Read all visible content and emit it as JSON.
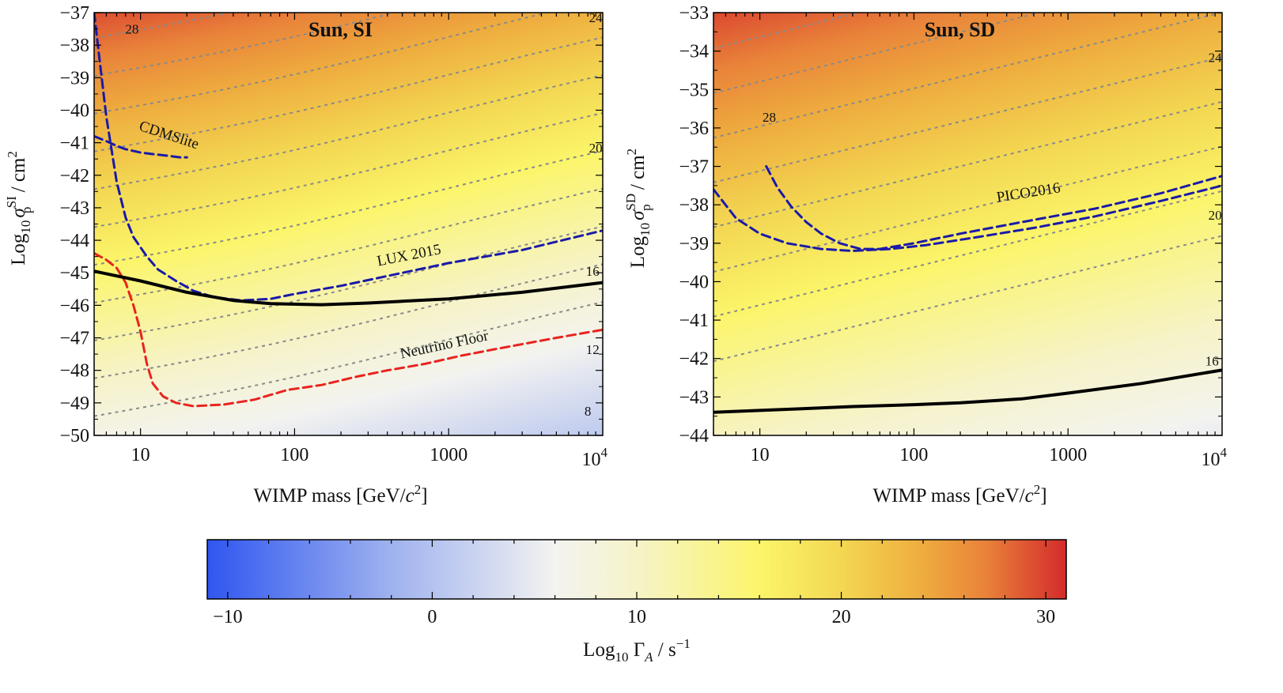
{
  "chart_data": [
    {
      "type": "heatmap",
      "title": "Sun, SI",
      "xlabel": "WIMP mass [GeV/c²]",
      "ylabel_parts": {
        "log": "Log",
        "log_sub": "10",
        "sigma": "σ",
        "sup": "SI",
        "sub": "p",
        "units": " / cm",
        "units_sup": "2"
      },
      "xscale": "log",
      "xlim": [
        5,
        10000
      ],
      "ylim": [
        -50,
        -37
      ],
      "x_ticks": [
        {
          "v": 10,
          "label": "10"
        },
        {
          "v": 100,
          "label": "100"
        },
        {
          "v": 1000,
          "label": "1000"
        },
        {
          "v": 10000,
          "label": "10",
          "sup": "4"
        }
      ],
      "y_ticks": [
        {
          "v": -37,
          "label": "−37"
        },
        {
          "v": -38,
          "label": "−38"
        },
        {
          "v": -39,
          "label": "−39"
        },
        {
          "v": -40,
          "label": "−40"
        },
        {
          "v": -41,
          "label": "−41"
        },
        {
          "v": -42,
          "label": "−42"
        },
        {
          "v": -43,
          "label": "−43"
        },
        {
          "v": -44,
          "label": "−44"
        },
        {
          "v": -45,
          "label": "−45"
        },
        {
          "v": -46,
          "label": "−46"
        },
        {
          "v": -47,
          "label": "−47"
        },
        {
          "v": -48,
          "label": "−48"
        },
        {
          "v": -49,
          "label": "−49"
        },
        {
          "v": -50,
          "label": "−50"
        }
      ],
      "field": {
        "a": 29.0,
        "b": -1.75,
        "c": 1.72,
        "y0": -37,
        "amp": 0.55,
        "p": 1.6,
        "xc": 1.8
      },
      "contours": [
        28,
        26,
        24,
        22,
        20,
        18,
        16,
        14,
        12,
        10,
        8
      ],
      "contour_labels": [
        {
          "text": "28",
          "m": 8.8,
          "y": -37.55
        },
        {
          "text": "24",
          "m": 9000,
          "y": -37.2
        },
        {
          "text": "20",
          "m": 9000,
          "y": -41.2
        },
        {
          "text": "16",
          "m": 8600,
          "y": -45.0
        },
        {
          "text": "12",
          "m": 8600,
          "y": -47.4
        },
        {
          "text": "8",
          "m": 8000,
          "y": -49.3
        }
      ],
      "series": [
        {
          "name": "CDMSlite",
          "color": "#1a1aa8",
          "dash": true,
          "points": [
            [
              5,
              -40.8
            ],
            [
              6,
              -40.95
            ],
            [
              7,
              -41.1
            ],
            [
              8,
              -41.2
            ],
            [
              10,
              -41.3
            ],
            [
              12,
              -41.35
            ],
            [
              15,
              -41.4
            ],
            [
              18,
              -41.45
            ],
            [
              20,
              -41.45
            ]
          ]
        },
        {
          "name": "LUX 2015",
          "color": "#1a1aa8",
          "dash": true,
          "points": [
            [
              5,
              -37.0
            ],
            [
              5.5,
              -38.7
            ],
            [
              6,
              -40.2
            ],
            [
              7,
              -42.2
            ],
            [
              8,
              -43.3
            ],
            [
              9,
              -43.9
            ],
            [
              11,
              -44.5
            ],
            [
              13,
              -44.9
            ],
            [
              17,
              -45.25
            ],
            [
              22,
              -45.55
            ],
            [
              30,
              -45.75
            ],
            [
              45,
              -45.85
            ],
            [
              70,
              -45.8
            ],
            [
              100,
              -45.65
            ],
            [
              200,
              -45.4
            ],
            [
              400,
              -45.1
            ],
            [
              1000,
              -44.7
            ],
            [
              3000,
              -44.3
            ],
            [
              10000,
              -43.7
            ]
          ]
        },
        {
          "name": "Neutrino Floor",
          "color": "#e8241e",
          "dash": true,
          "points": [
            [
              5,
              -44.4
            ],
            [
              6,
              -44.6
            ],
            [
              7,
              -44.85
            ],
            [
              8,
              -45.3
            ],
            [
              9,
              -46.0
            ],
            [
              10,
              -46.8
            ],
            [
              11,
              -47.8
            ],
            [
              12,
              -48.4
            ],
            [
              14,
              -48.8
            ],
            [
              17,
              -49.0
            ],
            [
              22,
              -49.1
            ],
            [
              35,
              -49.05
            ],
            [
              55,
              -48.9
            ],
            [
              90,
              -48.6
            ],
            [
              150,
              -48.45
            ],
            [
              250,
              -48.2
            ],
            [
              400,
              -48.0
            ],
            [
              700,
              -47.8
            ],
            [
              1200,
              -47.55
            ],
            [
              2000,
              -47.35
            ],
            [
              5000,
              -47.0
            ],
            [
              10000,
              -46.75
            ]
          ]
        },
        {
          "name": "model",
          "color": "#000000",
          "dash": false,
          "points": [
            [
              5,
              -44.95
            ],
            [
              10,
              -45.25
            ],
            [
              20,
              -45.6
            ],
            [
              40,
              -45.85
            ],
            [
              70,
              -45.95
            ],
            [
              150,
              -45.98
            ],
            [
              300,
              -45.93
            ],
            [
              1000,
              -45.8
            ],
            [
              3000,
              -45.6
            ],
            [
              10000,
              -45.3
            ]
          ]
        }
      ],
      "curve_labels": [
        {
          "text": "CDMSlite",
          "m": 15,
          "y": -40.9,
          "angle": 18
        },
        {
          "text": "LUX 2015",
          "m": 560,
          "y": -44.6,
          "angle": -11
        },
        {
          "text": "Neutrino Floor",
          "m": 950,
          "y": -47.35,
          "angle": -12
        }
      ]
    },
    {
      "type": "heatmap",
      "title": "Sun, SD",
      "xlabel": "WIMP mass [GeV/c²]",
      "ylabel_parts": {
        "log": "Log",
        "log_sub": "10",
        "sigma": "σ",
        "sup": "SD",
        "sub": "p",
        "units": " / cm",
        "units_sup": "2"
      },
      "xscale": "log",
      "xlim": [
        5,
        10000
      ],
      "ylim": [
        -44,
        -33
      ],
      "x_ticks": [
        {
          "v": 10,
          "label": "10"
        },
        {
          "v": 100,
          "label": "100"
        },
        {
          "v": 1000,
          "label": "1000"
        },
        {
          "v": 10000,
          "label": "10",
          "sup": "4"
        }
      ],
      "y_ticks": [
        {
          "v": -33,
          "label": "−33"
        },
        {
          "v": -34,
          "label": "−34"
        },
        {
          "v": -35,
          "label": "−35"
        },
        {
          "v": -36,
          "label": "−36"
        },
        {
          "v": -37,
          "label": "−37"
        },
        {
          "v": -38,
          "label": "−38"
        },
        {
          "v": -39,
          "label": "−39"
        },
        {
          "v": -40,
          "label": "−40"
        },
        {
          "v": -41,
          "label": "−41"
        },
        {
          "v": -42,
          "label": "−42"
        },
        {
          "v": -43,
          "label": "−43"
        },
        {
          "v": -44,
          "label": "−44"
        }
      ],
      "field": {
        "a": 29.6,
        "b": -1.7,
        "c": 1.72,
        "y0": -33,
        "amp": 0.0,
        "p": 1.6,
        "xc": 1.8
      },
      "contours": [
        28,
        26,
        24,
        22,
        20,
        18,
        16,
        14
      ],
      "contour_labels": [
        {
          "text": "28",
          "m": 11.5,
          "y": -35.75
        },
        {
          "text": "24",
          "m": 9000,
          "y": -34.2
        },
        {
          "text": "20",
          "m": 9000,
          "y": -38.3
        },
        {
          "text": "16",
          "m": 8600,
          "y": -42.1
        }
      ],
      "series": [
        {
          "name": "PICO2016 (a)",
          "color": "#1a1aa8",
          "dash": true,
          "points": [
            [
              5,
              -37.6
            ],
            [
              7,
              -38.35
            ],
            [
              10,
              -38.75
            ],
            [
              15,
              -39.0
            ],
            [
              25,
              -39.15
            ],
            [
              40,
              -39.2
            ],
            [
              70,
              -39.15
            ],
            [
              120,
              -39.05
            ],
            [
              250,
              -38.85
            ],
            [
              600,
              -38.6
            ],
            [
              1500,
              -38.3
            ],
            [
              4000,
              -37.9
            ],
            [
              10000,
              -37.5
            ]
          ]
        },
        {
          "name": "PICO2016 (b)",
          "color": "#1a1aa8",
          "dash": true,
          "points": [
            [
              11,
              -37.0
            ],
            [
              13,
              -37.55
            ],
            [
              16,
              -38.05
            ],
            [
              20,
              -38.45
            ],
            [
              25,
              -38.75
            ],
            [
              33,
              -39.0
            ],
            [
              45,
              -39.15
            ],
            [
              60,
              -39.15
            ],
            [
              100,
              -39.0
            ],
            [
              200,
              -38.75
            ],
            [
              500,
              -38.45
            ],
            [
              1500,
              -38.1
            ],
            [
              4000,
              -37.7
            ],
            [
              10000,
              -37.25
            ]
          ]
        },
        {
          "name": "model",
          "color": "#000000",
          "dash": false,
          "points": [
            [
              5,
              -43.4
            ],
            [
              10,
              -43.35
            ],
            [
              20,
              -43.3
            ],
            [
              40,
              -43.25
            ],
            [
              100,
              -43.2
            ],
            [
              200,
              -43.15
            ],
            [
              500,
              -43.05
            ],
            [
              1000,
              -42.9
            ],
            [
              3000,
              -42.65
            ],
            [
              10000,
              -42.3
            ]
          ]
        }
      ],
      "curve_labels": [
        {
          "text": "PICO2016",
          "m": 560,
          "y": -37.8,
          "angle": -9
        }
      ]
    }
  ],
  "colorbar": {
    "label_parts": {
      "log": "Log",
      "log_sub": "10",
      "gamma": " Γ",
      "gamma_sub": "A",
      "units": " / s",
      "units_sup": "−1"
    },
    "range": [
      -11,
      31
    ],
    "ticks": [
      {
        "v": -10,
        "label": "−10"
      },
      {
        "v": 0,
        "label": "0"
      },
      {
        "v": 10,
        "label": "10"
      },
      {
        "v": 20,
        "label": "20"
      },
      {
        "v": 30,
        "label": "30"
      }
    ],
    "stops": [
      {
        "v": -11,
        "color": "#2f56f0"
      },
      {
        "v": -2,
        "color": "#9fb2ef"
      },
      {
        "v": 6,
        "color": "#f3f3f0"
      },
      {
        "v": 10,
        "color": "#f6f3c8"
      },
      {
        "v": 16,
        "color": "#fbf56a"
      },
      {
        "v": 20,
        "color": "#f3d752"
      },
      {
        "v": 24,
        "color": "#eeac3e"
      },
      {
        "v": 27,
        "color": "#e9833a"
      },
      {
        "v": 31,
        "color": "#d42b2b"
      }
    ]
  }
}
